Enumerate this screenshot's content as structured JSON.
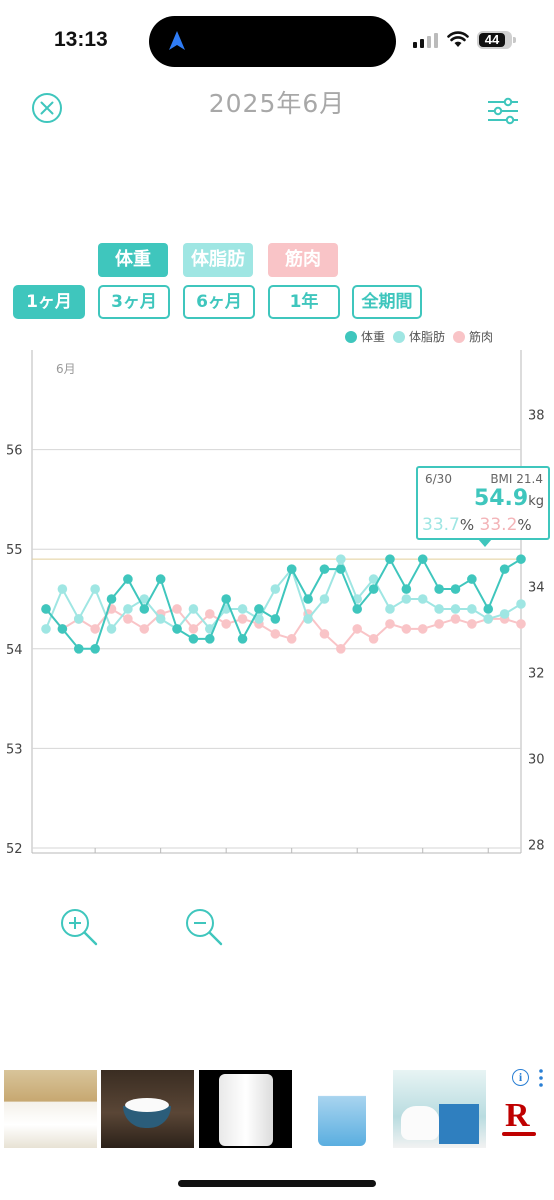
{
  "status_bar": {
    "time": "13:13",
    "battery": "44"
  },
  "header": {
    "title": "2025年6月",
    "close_icon": "close-circle-icon",
    "filter_icon": "sliders-icon"
  },
  "toggles": [
    {
      "label": "体重",
      "color": "#3fc6bd"
    },
    {
      "label": "体脂肪",
      "color": "#9fe6e3"
    },
    {
      "label": "筋肉",
      "color": "#f9c4c7"
    }
  ],
  "periods": [
    {
      "label": "1ヶ月",
      "active": true
    },
    {
      "label": "3ヶ月",
      "active": false
    },
    {
      "label": "6ヶ月",
      "active": false
    },
    {
      "label": "1年",
      "active": false
    },
    {
      "label": "全期間",
      "active": false
    }
  ],
  "legend": [
    {
      "label": "体重",
      "color": "#3fc6bd"
    },
    {
      "label": "体脂肪",
      "color": "#9fe6e3"
    },
    {
      "label": "筋肉",
      "color": "#f9c4c7"
    }
  ],
  "chart_data": {
    "type": "line",
    "month_label": "6月",
    "x": [
      1,
      2,
      3,
      4,
      5,
      6,
      7,
      8,
      9,
      10,
      11,
      12,
      13,
      14,
      15,
      16,
      17,
      18,
      19,
      20,
      21,
      22,
      23,
      24,
      25,
      26,
      27,
      28,
      29,
      30
    ],
    "x_ticks": [
      "4",
      "8",
      "12",
      "16",
      "20",
      "24",
      "28"
    ],
    "y_left_ticks": [
      "52",
      "53",
      "54",
      "55",
      "56"
    ],
    "y_left_range": [
      51.95,
      57.0
    ],
    "y_right_ticks": [
      "28",
      "30",
      "32",
      "34",
      "36",
      "38"
    ],
    "y_right_range": [
      27.8,
      39.5
    ],
    "reference_line": 54.9,
    "grid": true,
    "series": [
      {
        "name": "体重",
        "axis": "left",
        "color": "#3fc6bd",
        "values": [
          54.4,
          54.2,
          54.0,
          54.0,
          54.5,
          54.7,
          54.4,
          54.7,
          54.2,
          54.1,
          54.1,
          54.5,
          54.1,
          54.4,
          54.3,
          54.8,
          54.5,
          54.8,
          54.8,
          54.4,
          54.6,
          54.9,
          54.6,
          54.9,
          54.6,
          54.6,
          54.7,
          54.4,
          54.8,
          54.9
        ]
      },
      {
        "name": "体脂肪",
        "axis": "left",
        "color": "#9fe6e3",
        "values": [
          54.2,
          54.6,
          54.3,
          54.6,
          54.2,
          54.4,
          54.5,
          54.3,
          54.2,
          54.4,
          54.2,
          54.4,
          54.4,
          54.3,
          54.6,
          54.8,
          54.3,
          54.5,
          54.9,
          54.5,
          54.7,
          54.4,
          54.5,
          54.5,
          54.4,
          54.4,
          54.4,
          54.3,
          54.35,
          54.45
        ]
      },
      {
        "name": "筋肉",
        "axis": "left",
        "color": "#f9c4c7",
        "values": [
          54.4,
          54.2,
          54.3,
          54.2,
          54.4,
          54.3,
          54.2,
          54.35,
          54.4,
          54.2,
          54.35,
          54.25,
          54.3,
          54.25,
          54.15,
          54.1,
          54.35,
          54.15,
          54.0,
          54.2,
          54.1,
          54.25,
          54.2,
          54.2,
          54.25,
          54.3,
          54.25,
          54.3,
          54.3,
          54.25
        ]
      }
    ]
  },
  "tooltip": {
    "date": "6/30",
    "bmi": "BMI 21.4",
    "weight": "54.9",
    "weight_unit": "kg",
    "fat": "33.7",
    "muscle": "33.2",
    "pct": "%"
  },
  "zoom": {
    "in_icon": "zoom-in-icon",
    "out_icon": "zoom-out-icon"
  },
  "ads": [
    {
      "name": "rice-ad-1",
      "color": "#c7a871"
    },
    {
      "name": "rice-ad-2",
      "color": "#5a4636"
    },
    {
      "name": "rice-ad-3",
      "color": "#000000"
    },
    {
      "name": "rice-ad-4",
      "color": "#ffffff"
    },
    {
      "name": "rice-ad-5",
      "color": "#b9dce0"
    }
  ],
  "ad_brand": "R"
}
